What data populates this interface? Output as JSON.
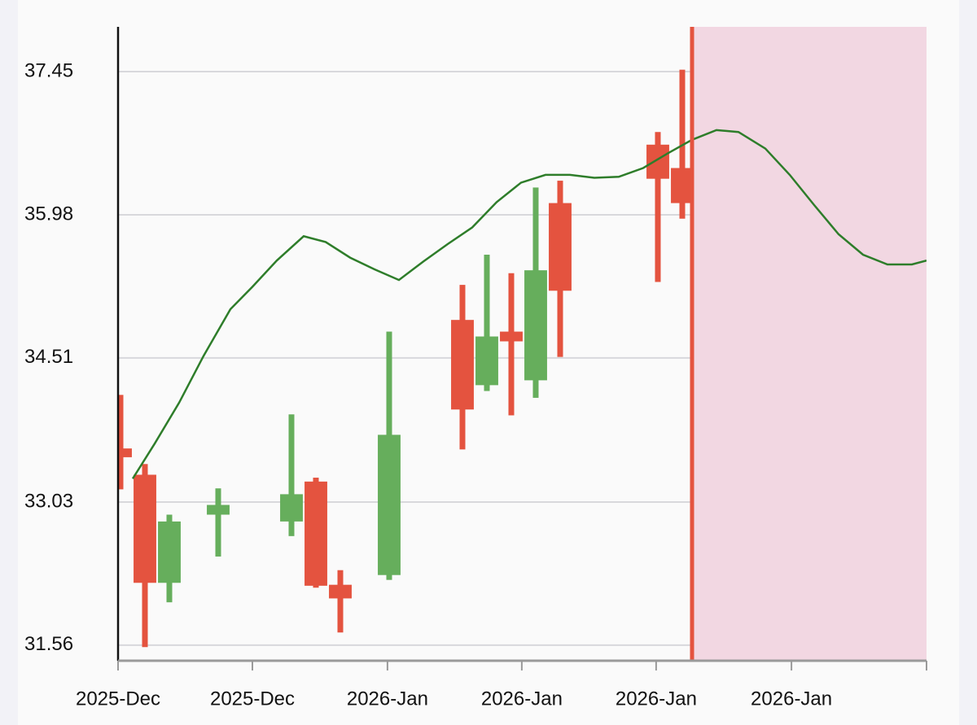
{
  "chart_data": {
    "type": "candlestick",
    "x": [
      0,
      1,
      2,
      4,
      7,
      8,
      9,
      11,
      14,
      15,
      16,
      17,
      18,
      22,
      23
    ],
    "open": [
      33.58,
      33.31,
      32.2,
      32.9,
      32.83,
      33.24,
      32.18,
      32.28,
      34.9,
      34.23,
      34.78,
      34.28,
      36.1,
      36.7,
      36.46
    ],
    "high": [
      34.13,
      33.42,
      32.9,
      33.17,
      33.93,
      33.28,
      32.33,
      34.78,
      35.26,
      35.57,
      35.38,
      36.26,
      36.33,
      36.83,
      37.47
    ],
    "low": [
      33.16,
      31.54,
      32.0,
      32.47,
      32.68,
      32.15,
      31.69,
      32.23,
      33.57,
      34.17,
      33.92,
      34.1,
      34.52,
      35.29,
      35.94
    ],
    "close": [
      33.49,
      32.2,
      32.83,
      33.0,
      33.11,
      32.17,
      32.04,
      33.72,
      33.98,
      34.73,
      34.68,
      35.41,
      35.2,
      36.35,
      36.1
    ],
    "up_color": "#66ae5c",
    "down_color": "#e4533f",
    "line": {
      "color": "#2e7d2a",
      "x": [
        0.5,
        1.4,
        2.4,
        3.4,
        4.5,
        5.4,
        6.4,
        7.5,
        8.4,
        9.4,
        10.4,
        11.4,
        12.4,
        13.4,
        14.4,
        15.4,
        16.4,
        17.4,
        18.4,
        19.4,
        20.4,
        21.4,
        22.4,
        23.4,
        24.4,
        25.3,
        26.4,
        27.4,
        28.4,
        29.4,
        30.4,
        31.4,
        32.4,
        33
      ],
      "values": [
        33.27,
        33.63,
        34.05,
        34.53,
        35.01,
        35.24,
        35.51,
        35.76,
        35.7,
        35.54,
        35.42,
        35.31,
        35.5,
        35.68,
        35.85,
        36.11,
        36.31,
        36.39,
        36.39,
        36.36,
        36.37,
        36.46,
        36.61,
        36.75,
        36.85,
        36.83,
        36.66,
        36.39,
        36.08,
        35.78,
        35.57,
        35.47,
        35.47,
        35.51
      ]
    },
    "forecast_start": 23.4,
    "forecast_line_color": "#e4533f",
    "forecast_fill": "#f2d7e2",
    "xlim": [
      -0.1,
      33
    ],
    "xticks": [
      {
        "value": -0.1,
        "label": "2025-Dec"
      },
      {
        "value": 5.4,
        "label": "2025-Dec"
      },
      {
        "value": 10.93,
        "label": "2026-Jan"
      },
      {
        "value": 16.43,
        "label": "2026-Jan"
      },
      {
        "value": 21.93,
        "label": "2026-Jan"
      },
      {
        "value": 27.47,
        "label": "2026-Jan"
      }
    ],
    "ylim": [
      31.4,
      37.91
    ],
    "yticks": [
      31.56,
      33.03,
      34.51,
      35.98,
      37.45
    ],
    "grid": true
  }
}
